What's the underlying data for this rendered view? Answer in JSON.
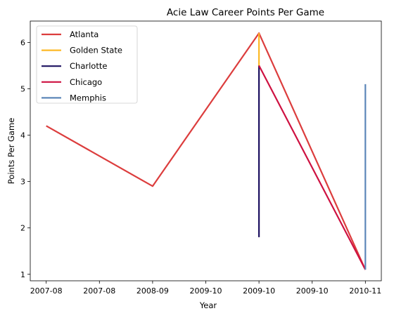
{
  "chart_data": {
    "type": "line",
    "title": "Acie Law Career Points Per Game",
    "xlabel": "Year",
    "ylabel": "Points Per Game",
    "x_tick_labels": [
      "2007-08",
      "2007-08",
      "2008-09",
      "2009-10",
      "2009-10",
      "2009-10",
      "2010-11"
    ],
    "y_ticks": [
      1,
      2,
      3,
      4,
      5,
      6
    ],
    "ylim": [
      0.86,
      6.46
    ],
    "xlim": [
      -0.15,
      3.15
    ],
    "grid": false,
    "legend_position": "top-left",
    "series": [
      {
        "name": "Atlanta",
        "color": "#dc3d3d",
        "points": [
          [
            0,
            4.2
          ],
          [
            1,
            2.9
          ],
          [
            2,
            6.2
          ],
          [
            3,
            1.1
          ]
        ]
      },
      {
        "name": "Golden State",
        "color": "#fdb927",
        "points": [
          [
            2,
            6.2
          ],
          [
            2,
            5.5
          ]
        ]
      },
      {
        "name": "Charlotte",
        "color": "#1d1160",
        "points": [
          [
            2,
            5.5
          ],
          [
            2,
            1.8
          ]
        ]
      },
      {
        "name": "Chicago",
        "color": "#ce1141",
        "points": [
          [
            2,
            5.5
          ],
          [
            3,
            1.1
          ]
        ]
      },
      {
        "name": "Memphis",
        "color": "#5d87b9",
        "points": [
          [
            3,
            1.1
          ],
          [
            3,
            5.1
          ]
        ]
      }
    ]
  }
}
